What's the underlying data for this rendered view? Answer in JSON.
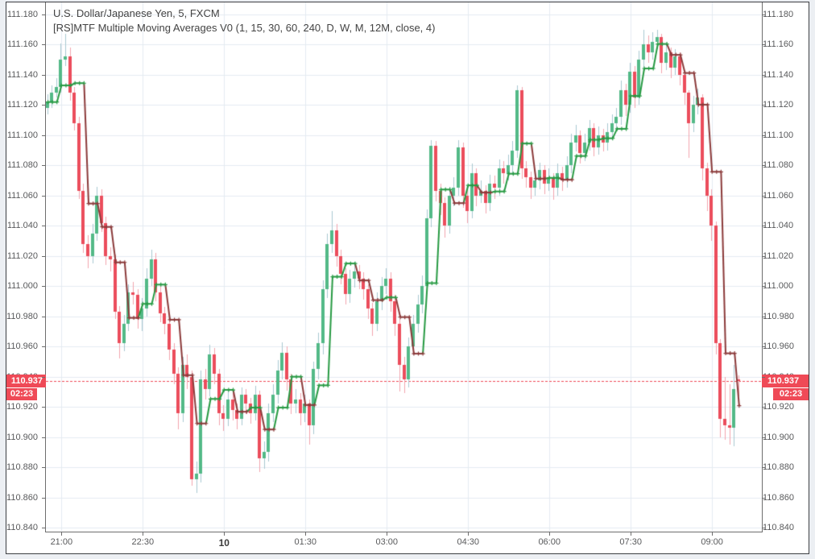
{
  "header": {
    "title": "U.S. Dollar/Japanese Yen, 5, FXCM",
    "indicator": "[RS]MTF Multiple Moving Averages V0 (1, 15, 30, 60, 240, D, W, M, 12M, close, 4)"
  },
  "price_scale": {
    "max": 111.18,
    "min": 110.84,
    "step": 0.02,
    "decimals": 3
  },
  "time_scale": {
    "labels": [
      {
        "text": "21:00",
        "bar": 3,
        "bold": false
      },
      {
        "text": "22:30",
        "bar": 21,
        "bold": false
      },
      {
        "text": "10",
        "bar": 39,
        "bold": true
      },
      {
        "text": "01:30",
        "bar": 57,
        "bold": false
      },
      {
        "text": "03:00",
        "bar": 75,
        "bold": false
      },
      {
        "text": "04:30",
        "bar": 93,
        "bold": false
      },
      {
        "text": "06:00",
        "bar": 111,
        "bold": false
      },
      {
        "text": "07:30",
        "bar": 129,
        "bold": false
      },
      {
        "text": "09:00",
        "bar": 147,
        "bold": false
      }
    ]
  },
  "last_price": {
    "value": "110.937",
    "price": 110.937,
    "countdown": "02:23"
  },
  "colors": {
    "background": "#eceff3",
    "chart_bg": "#ffffff",
    "frame_border": "#3c3e42",
    "axis_line": "#6e6e6e",
    "grid": "#e4ebf2",
    "up": "#53b987",
    "down": "#eb4d5c",
    "up_wick": "#a9c8d0",
    "down_wick": "#f2a4ae",
    "ma_up": "#279a43",
    "ma_down": "#8b3a3a",
    "last_price": "#ef4a57",
    "label_text": "#58595b",
    "title_text": "#434343"
  },
  "chart_data": {
    "type": "candlestick",
    "title": "U.S. Dollar/Japanese Yen, 5, FXCM",
    "symbol": "U.S. Dollar/Japanese Yen",
    "interval_minutes": 5,
    "exchange": "FXCM",
    "ylim": [
      110.84,
      111.18
    ],
    "grid": true,
    "y_ticks": [
      "111.180",
      "111.160",
      "111.140",
      "111.120",
      "111.100",
      "111.080",
      "111.060",
      "111.040",
      "111.020",
      "111.000",
      "110.980",
      "110.960",
      "110.940",
      "110.920",
      "110.900",
      "110.880",
      "110.860",
      "110.840"
    ],
    "x_ticks": [
      "21:00",
      "22:30",
      "10",
      "01:30",
      "03:00",
      "04:30",
      "06:00",
      "07:30",
      "09:00"
    ],
    "last_close": 110.937,
    "price_base": 110,
    "price_unit": 0.001,
    "ohlc_format": "[open, high, low, close] in thousandths above price_base",
    "candles": [
      [
        1118,
        1127,
        1114,
        1122
      ],
      [
        1122,
        1133,
        1118,
        1128
      ],
      [
        1128,
        1138,
        1125,
        1132
      ],
      [
        1132,
        1161,
        1128,
        1150
      ],
      [
        1150,
        1167,
        1146,
        1152
      ],
      [
        1152,
        1158,
        1123,
        1128
      ],
      [
        1128,
        1132,
        1103,
        1108
      ],
      [
        1108,
        1112,
        1058,
        1063
      ],
      [
        1063,
        1068,
        1022,
        1028
      ],
      [
        1028,
        1034,
        1012,
        1020
      ],
      [
        1020,
        1041,
        1015,
        1035
      ],
      [
        1035,
        1066,
        1030,
        1060
      ],
      [
        1060,
        1064,
        1036,
        1042
      ],
      [
        1042,
        1046,
        1014,
        1020
      ],
      [
        1020,
        1026,
        1010,
        1018
      ],
      [
        1018,
        1021,
        978,
        983
      ],
      [
        983,
        987,
        952,
        962
      ],
      [
        962,
        981,
        957,
        975
      ],
      [
        975,
        1001,
        970,
        996
      ],
      [
        996,
        1003,
        988,
        994
      ],
      [
        994,
        998,
        972,
        978
      ],
      [
        978,
        992,
        970,
        985
      ],
      [
        985,
        1012,
        980,
        1005
      ],
      [
        1005,
        1024,
        1000,
        1018
      ],
      [
        1018,
        1022,
        990,
        996
      ],
      [
        996,
        1000,
        976,
        982
      ],
      [
        982,
        986,
        968,
        975
      ],
      [
        975,
        979,
        951,
        958
      ],
      [
        958,
        962,
        935,
        942
      ],
      [
        942,
        946,
        905,
        916
      ],
      [
        916,
        953,
        910,
        948
      ],
      [
        948,
        955,
        932,
        940
      ],
      [
        940,
        944,
        868,
        872
      ],
      [
        872,
        884,
        863,
        876
      ],
      [
        876,
        944,
        870,
        938
      ],
      [
        938,
        945,
        925,
        932
      ],
      [
        932,
        961,
        927,
        955
      ],
      [
        955,
        959,
        935,
        942
      ],
      [
        942,
        945,
        908,
        916
      ],
      [
        916,
        921,
        904,
        912
      ],
      [
        912,
        931,
        907,
        925
      ],
      [
        925,
        929,
        911,
        918
      ],
      [
        918,
        922,
        905,
        912
      ],
      [
        912,
        933,
        908,
        928
      ],
      [
        928,
        932,
        915,
        922
      ],
      [
        922,
        926,
        909,
        916
      ],
      [
        916,
        934,
        911,
        928
      ],
      [
        928,
        931,
        877,
        886
      ],
      [
        886,
        897,
        879,
        890
      ],
      [
        890,
        922,
        884,
        916
      ],
      [
        916,
        935,
        910,
        928
      ],
      [
        928,
        951,
        922,
        944
      ],
      [
        944,
        963,
        938,
        956
      ],
      [
        956,
        960,
        931,
        938
      ],
      [
        938,
        942,
        915,
        922
      ],
      [
        922,
        932,
        916,
        925
      ],
      [
        925,
        929,
        908,
        916
      ],
      [
        916,
        928,
        910,
        922
      ],
      [
        922,
        925,
        895,
        908
      ],
      [
        908,
        950,
        902,
        945
      ],
      [
        945,
        969,
        938,
        962
      ],
      [
        962,
        1004,
        955,
        998
      ],
      [
        998,
        1035,
        992,
        1028
      ],
      [
        1028,
        1050,
        1022,
        1037
      ],
      [
        1037,
        1041,
        1013,
        1020
      ],
      [
        1020,
        1024,
        1001,
        1008
      ],
      [
        1008,
        1012,
        988,
        995
      ],
      [
        995,
        1011,
        989,
        1005
      ],
      [
        1005,
        1016,
        999,
        1010
      ],
      [
        1010,
        1014,
        998,
        1005
      ],
      [
        1005,
        1009,
        991,
        998
      ],
      [
        998,
        1001,
        978,
        985
      ],
      [
        985,
        989,
        967,
        975
      ],
      [
        975,
        996,
        970,
        990
      ],
      [
        990,
        1006,
        984,
        1000
      ],
      [
        1000,
        1012,
        995,
        1005
      ],
      [
        1005,
        1009,
        983,
        990
      ],
      [
        990,
        994,
        967,
        975
      ],
      [
        975,
        978,
        930,
        948
      ],
      [
        948,
        953,
        929,
        938
      ],
      [
        938,
        966,
        933,
        960
      ],
      [
        960,
        981,
        954,
        975
      ],
      [
        975,
        994,
        969,
        988
      ],
      [
        988,
        1007,
        982,
        1000
      ],
      [
        1000,
        1051,
        995,
        1045
      ],
      [
        1045,
        1097,
        1039,
        1093
      ],
      [
        1093,
        1096,
        1056,
        1063
      ],
      [
        1063,
        1068,
        1047,
        1055
      ],
      [
        1055,
        1059,
        1032,
        1040
      ],
      [
        1040,
        1066,
        1035,
        1060
      ],
      [
        1060,
        1072,
        1053,
        1065
      ],
      [
        1065,
        1097,
        1060,
        1092
      ],
      [
        1092,
        1095,
        1052,
        1060
      ],
      [
        1060,
        1064,
        1042,
        1050
      ],
      [
        1050,
        1081,
        1045,
        1075
      ],
      [
        1075,
        1078,
        1053,
        1060
      ],
      [
        1060,
        1070,
        1055,
        1063
      ],
      [
        1063,
        1067,
        1048,
        1055
      ],
      [
        1055,
        1074,
        1050,
        1068
      ],
      [
        1068,
        1073,
        1058,
        1065
      ],
      [
        1065,
        1084,
        1060,
        1078
      ],
      [
        1078,
        1083,
        1068,
        1075
      ],
      [
        1075,
        1087,
        1070,
        1080
      ],
      [
        1080,
        1096,
        1074,
        1090
      ],
      [
        1090,
        1133,
        1085,
        1130
      ],
      [
        1130,
        1132,
        1071,
        1078
      ],
      [
        1078,
        1083,
        1065,
        1072
      ],
      [
        1072,
        1076,
        1058,
        1065
      ],
      [
        1065,
        1077,
        1060,
        1070
      ],
      [
        1070,
        1082,
        1064,
        1077
      ],
      [
        1077,
        1080,
        1061,
        1068
      ],
      [
        1068,
        1078,
        1063,
        1072
      ],
      [
        1072,
        1075,
        1057,
        1065
      ],
      [
        1065,
        1081,
        1060,
        1075
      ],
      [
        1075,
        1079,
        1063,
        1070
      ],
      [
        1070,
        1086,
        1065,
        1080
      ],
      [
        1080,
        1101,
        1075,
        1095
      ],
      [
        1095,
        1107,
        1089,
        1100
      ],
      [
        1100,
        1103,
        1081,
        1088
      ],
      [
        1088,
        1101,
        1083,
        1095
      ],
      [
        1095,
        1110,
        1090,
        1105
      ],
      [
        1105,
        1108,
        1086,
        1092
      ],
      [
        1092,
        1106,
        1087,
        1100
      ],
      [
        1100,
        1104,
        1089,
        1095
      ],
      [
        1095,
        1108,
        1090,
        1102
      ],
      [
        1102,
        1114,
        1097,
        1108
      ],
      [
        1108,
        1118,
        1103,
        1112
      ],
      [
        1112,
        1136,
        1107,
        1130
      ],
      [
        1130,
        1134,
        1113,
        1120
      ],
      [
        1120,
        1148,
        1115,
        1142
      ],
      [
        1142,
        1146,
        1118,
        1125
      ],
      [
        1125,
        1156,
        1120,
        1150
      ],
      [
        1150,
        1170,
        1145,
        1160
      ],
      [
        1160,
        1166,
        1148,
        1155
      ],
      [
        1155,
        1168,
        1150,
        1162
      ],
      [
        1162,
        1170,
        1157,
        1165
      ],
      [
        1165,
        1167,
        1141,
        1148
      ],
      [
        1148,
        1161,
        1143,
        1155
      ],
      [
        1155,
        1158,
        1138,
        1145
      ],
      [
        1145,
        1157,
        1140,
        1152
      ],
      [
        1152,
        1155,
        1133,
        1140
      ],
      [
        1140,
        1143,
        1120,
        1128
      ],
      [
        1128,
        1130,
        1085,
        1108
      ],
      [
        1108,
        1126,
        1102,
        1120
      ],
      [
        1120,
        1131,
        1114,
        1125
      ],
      [
        1125,
        1127,
        1070,
        1078
      ],
      [
        1078,
        1082,
        1050,
        1060
      ],
      [
        1060,
        1064,
        1030,
        1040
      ],
      [
        1040,
        1043,
        955,
        962
      ],
      [
        962,
        965,
        900,
        912
      ],
      [
        912,
        940,
        898,
        908
      ],
      [
        908,
        935,
        895,
        906
      ],
      [
        906,
        948,
        894,
        932
      ],
      [
        938,
        941,
        927,
        937
      ]
    ],
    "indicator": {
      "name": "[RS]MTF Multiple Moving Averages V0",
      "style": "stepped line with plus markers, green rising / maroon falling",
      "sma_period": 4,
      "step_bars": 3
    }
  }
}
